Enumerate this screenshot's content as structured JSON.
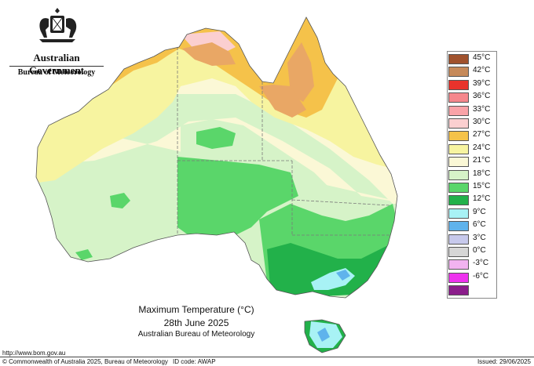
{
  "header": {
    "government": "Australian Government",
    "bureau": "Bureau of Meteorology"
  },
  "legend": {
    "items": [
      {
        "label": "45°C",
        "color": "#a0522d"
      },
      {
        "label": "42°C",
        "color": "#c68a5a"
      },
      {
        "label": "39°C",
        "color": "#e8332c"
      },
      {
        "label": "36°C",
        "color": "#f5878c"
      },
      {
        "label": "33°C",
        "color": "#f9a3a8"
      },
      {
        "label": "30°C",
        "color": "#fbcfd0"
      },
      {
        "label": "27°C",
        "color": "#f5c24a"
      },
      {
        "label": "24°C",
        "color": "#f7f4a0"
      },
      {
        "label": "21°C",
        "color": "#fbf8d6"
      },
      {
        "label": "18°C",
        "color": "#d6f3c8"
      },
      {
        "label": "15°C",
        "color": "#5ad66a"
      },
      {
        "label": "12°C",
        "color": "#22b14a"
      },
      {
        "label": "9°C",
        "color": "#a8f2f5"
      },
      {
        "label": "6°C",
        "color": "#5fb3ec"
      },
      {
        "label": "3°C",
        "color": "#c7c9ec"
      },
      {
        "label": "0°C",
        "color": "#d6d6d6"
      },
      {
        "label": "-3°C",
        "color": "#f2b3f0"
      },
      {
        "label": "-6°C",
        "color": "#ee33ee"
      },
      {
        "label": "",
        "color": "#8b1d8b"
      }
    ]
  },
  "caption": {
    "title": "Maximum Temperature (°C)",
    "date": "28th June 2025",
    "source": "Australian Bureau of Meteorology"
  },
  "footer": {
    "url": "http://www.bom.gov.au",
    "copyright": "© Commonwealth of Australia 2025, Bureau of Meteorology",
    "id_code": "ID code: AWAP",
    "issued": "Issued: 29/06/2025"
  }
}
